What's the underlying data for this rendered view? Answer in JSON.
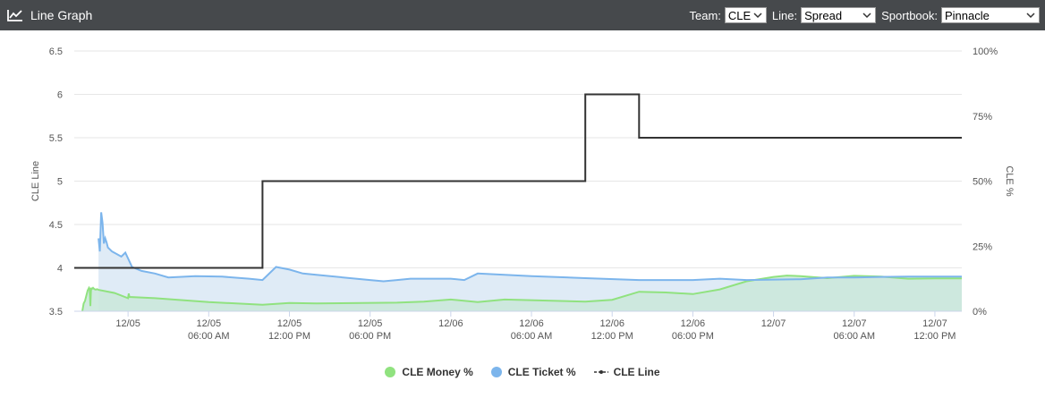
{
  "header": {
    "title": "Line Graph",
    "icon": "line-chart-icon",
    "team_label": "Team:",
    "team_value": "CLE",
    "line_label": "Line:",
    "line_value": "Spread",
    "sportsbook_label": "Sportbook:",
    "sportsbook_value": "Pinnacle"
  },
  "colors": {
    "header_bg": "#46494c",
    "money": "#90e27f",
    "money_fill": "#cbe8dc",
    "ticket": "#7cb5ec",
    "ticket_fill": "#dce9f5",
    "line": "#333333"
  },
  "chart_data": {
    "type": "line",
    "title": "",
    "xlabel": "",
    "ylabel_left": "CLE Line",
    "ylabel_right": "CLE %",
    "x_ticks": [
      "12/05",
      "12/05 06:00 AM",
      "12/05 12:00 PM",
      "12/05 06:00 PM",
      "12/06",
      "12/06 06:00 AM",
      "12/06 12:00 PM",
      "12/06 06:00 PM",
      "12/07",
      "12/07 06:00 AM",
      "12/07 12:00 PM"
    ],
    "x_range_hours": [
      -4.0,
      62.0
    ],
    "y_left_ticks": [
      "6.5",
      "6",
      "5.5",
      "5",
      "4.5",
      "4",
      "3.5"
    ],
    "y_left_range": [
      3.5,
      6.5
    ],
    "y_right_ticks": [
      "100%",
      "75%",
      "50%",
      "25%",
      "0%"
    ],
    "y_right_range": [
      0,
      100
    ],
    "grid": "horizontal",
    "legend_position": "bottom-center",
    "series": [
      {
        "name": "CLE Money %",
        "axis": "right",
        "style": "area",
        "points": [
          [
            -3.4,
            0
          ],
          [
            -3.3,
            3
          ],
          [
            -3.2,
            4
          ],
          [
            -3.1,
            6
          ],
          [
            -3.0,
            8
          ],
          [
            -2.9,
            9
          ],
          [
            -2.85,
            8.5
          ],
          [
            -2.8,
            2
          ],
          [
            -2.75,
            9
          ],
          [
            -2.7,
            8.5
          ],
          [
            -2.6,
            9
          ],
          [
            -2.5,
            8.5
          ],
          [
            -2.4,
            8.3
          ],
          [
            -2.3,
            8.5
          ],
          [
            -2.2,
            8.2
          ],
          [
            -1.0,
            7
          ],
          [
            0.0,
            5
          ],
          [
            0.05,
            6.8
          ],
          [
            0.1,
            5.5
          ],
          [
            2.0,
            5
          ],
          [
            6.0,
            3.5
          ],
          [
            10.0,
            2.5
          ],
          [
            12.0,
            3.2
          ],
          [
            14.0,
            3.0
          ],
          [
            20.0,
            3.3
          ],
          [
            22.0,
            3.7
          ],
          [
            24.0,
            4.5
          ],
          [
            26.0,
            3.5
          ],
          [
            28.0,
            4.5
          ],
          [
            34.0,
            3.7
          ],
          [
            36.0,
            4.4
          ],
          [
            38.0,
            7.5
          ],
          [
            40.0,
            7.2
          ],
          [
            42.0,
            6.6
          ],
          [
            44.0,
            8.4
          ],
          [
            46.0,
            11.5
          ],
          [
            48.0,
            13.2
          ],
          [
            49.0,
            13.7
          ],
          [
            50.0,
            13.5
          ],
          [
            52.0,
            12.7
          ],
          [
            54.0,
            13.6
          ],
          [
            56.0,
            13.3
          ],
          [
            58.0,
            12.5
          ],
          [
            60.0,
            12.6
          ],
          [
            62.0,
            12.6
          ]
        ]
      },
      {
        "name": "CLE Ticket %",
        "axis": "right",
        "style": "area",
        "points": [
          [
            -2.2,
            28
          ],
          [
            -2.1,
            23
          ],
          [
            -2.0,
            38
          ],
          [
            -1.9,
            34
          ],
          [
            -1.8,
            26
          ],
          [
            -1.7,
            28
          ],
          [
            -1.6,
            26.5
          ],
          [
            -1.5,
            24.5
          ],
          [
            -1.2,
            23
          ],
          [
            -0.5,
            21
          ],
          [
            -0.2,
            22.5
          ],
          [
            0.3,
            17
          ],
          [
            1.0,
            15.5
          ],
          [
            2.0,
            14.5
          ],
          [
            3.0,
            13
          ],
          [
            5.0,
            13.5
          ],
          [
            7.0,
            13.3
          ],
          [
            9.0,
            12.5
          ],
          [
            10.0,
            12
          ],
          [
            11.0,
            17
          ],
          [
            12.0,
            16
          ],
          [
            13.0,
            14.5
          ],
          [
            14.0,
            14
          ],
          [
            16.0,
            13
          ],
          [
            18.0,
            12
          ],
          [
            19.0,
            11.5
          ],
          [
            20.0,
            12
          ],
          [
            21.0,
            12.5
          ],
          [
            24.0,
            12.5
          ],
          [
            25.0,
            12
          ],
          [
            26.0,
            14.5
          ],
          [
            30.0,
            13.5
          ],
          [
            34.0,
            12.7
          ],
          [
            38.0,
            12
          ],
          [
            42.0,
            12
          ],
          [
            44.0,
            12.5
          ],
          [
            46.0,
            12
          ],
          [
            50.0,
            12.3
          ],
          [
            52.0,
            13
          ],
          [
            54.0,
            13
          ],
          [
            56.0,
            13.2
          ],
          [
            58.0,
            13.3
          ],
          [
            60.0,
            13.3
          ],
          [
            62.0,
            13.3
          ]
        ]
      },
      {
        "name": "CLE Line",
        "axis": "left",
        "style": "step",
        "points": [
          [
            -4.0,
            4
          ],
          [
            10.0,
            4
          ],
          [
            10.0,
            5
          ],
          [
            34.0,
            5
          ],
          [
            34.0,
            6
          ],
          [
            38.0,
            6
          ],
          [
            38.0,
            5.5
          ],
          [
            62.0,
            5.5
          ]
        ]
      }
    ]
  }
}
